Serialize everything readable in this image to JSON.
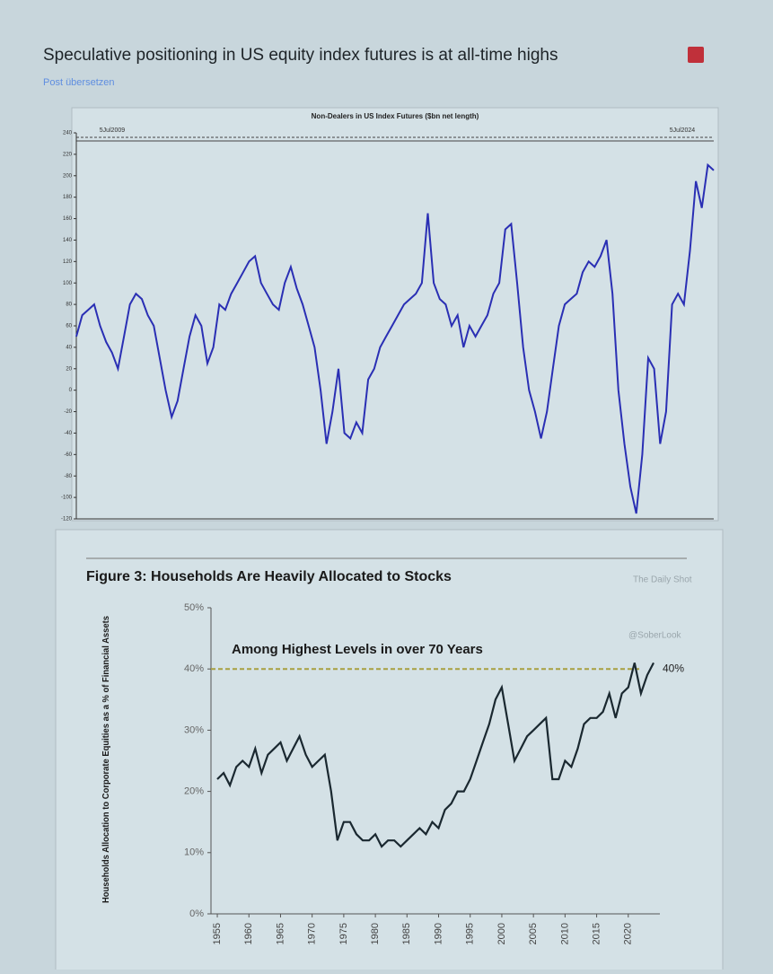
{
  "post": {
    "title": "Speculative positioning in US equity index futures is at all-time highs",
    "translate": "Post übersetzen"
  },
  "chart_data": [
    {
      "type": "line",
      "title": "Non-Dealers in US Index Futures ($bn net length)",
      "annotations": [
        "5Jul2009",
        "5Jul2024"
      ],
      "values": [
        50,
        70,
        75,
        80,
        60,
        45,
        35,
        20,
        50,
        80,
        90,
        85,
        70,
        60,
        30,
        0,
        -25,
        -10,
        20,
        50,
        70,
        60,
        25,
        40,
        80,
        75,
        90,
        100,
        110,
        120,
        125,
        100,
        90,
        80,
        75,
        100,
        115,
        95,
        80,
        60,
        40,
        0,
        -50,
        -20,
        20,
        -40,
        -45,
        -30,
        -40,
        10,
        20,
        40,
        50,
        60,
        70,
        80,
        85,
        90,
        100,
        165,
        100,
        85,
        80,
        60,
        70,
        40,
        60,
        50,
        60,
        70,
        90,
        100,
        150,
        155,
        100,
        40,
        0,
        -20,
        -45,
        -20,
        20,
        60,
        80,
        85,
        90,
        110,
        120,
        115,
        125,
        140,
        90,
        0,
        -50,
        -90,
        -115,
        -60,
        30,
        20,
        -50,
        -20,
        80,
        90,
        80,
        130,
        195,
        170,
        210,
        205
      ],
      "color": "#2a2fb4",
      "ylim": [
        -120,
        240
      ],
      "yticks": [
        -120,
        -100,
        -80,
        -60,
        -40,
        -20,
        0,
        20,
        40,
        60,
        80,
        100,
        120,
        140,
        160,
        180,
        200,
        220,
        240
      ]
    },
    {
      "type": "line",
      "title": "Figure 3: Households Are Heavily Allocated to Stocks",
      "y_label": "Households Allocation to Corporate Equities as a % of Financial Assets",
      "annotation": "Among Highest Levels in over 70 Years",
      "reference": {
        "value": 40,
        "label": "40%"
      },
      "reference_color": "#a8a040",
      "watermarks": [
        "The Daily Shot",
        "@SoberLook"
      ],
      "x": [
        1955,
        1956,
        1957,
        1958,
        1959,
        1960,
        1961,
        1962,
        1963,
        1964,
        1965,
        1966,
        1967,
        1968,
        1969,
        1970,
        1971,
        1972,
        1973,
        1974,
        1975,
        1976,
        1977,
        1978,
        1979,
        1980,
        1981,
        1982,
        1983,
        1984,
        1985,
        1986,
        1987,
        1988,
        1989,
        1990,
        1991,
        1992,
        1993,
        1994,
        1995,
        1996,
        1997,
        1998,
        1999,
        2000,
        2001,
        2002,
        2003,
        2004,
        2005,
        2006,
        2007,
        2008,
        2009,
        2010,
        2011,
        2012,
        2013,
        2014,
        2015,
        2016,
        2017,
        2018,
        2019,
        2020,
        2021,
        2022,
        2023,
        2024
      ],
      "values": [
        22,
        23,
        21,
        24,
        25,
        24,
        27,
        23,
        26,
        27,
        28,
        25,
        27,
        29,
        26,
        24,
        25,
        26,
        20,
        12,
        15,
        15,
        13,
        12,
        12,
        13,
        11,
        12,
        12,
        11,
        12,
        13,
        14,
        13,
        15,
        14,
        17,
        18,
        20,
        20,
        22,
        25,
        28,
        31,
        35,
        37,
        31,
        25,
        27,
        29,
        30,
        31,
        32,
        22,
        22,
        25,
        24,
        27,
        31,
        32,
        32,
        33,
        36,
        32,
        36,
        37,
        41,
        36,
        39,
        41
      ],
      "color": "#1a2830",
      "xlim": [
        1954,
        2025
      ],
      "ylim": [
        0,
        50
      ],
      "yticks": [
        {
          "value": 0,
          "label": "0%"
        },
        {
          "value": 10,
          "label": "10%"
        },
        {
          "value": 20,
          "label": "20%"
        },
        {
          "value": 30,
          "label": "30%"
        },
        {
          "value": 40,
          "label": "40%"
        },
        {
          "value": 50,
          "label": "50%"
        }
      ],
      "xticks": [
        1955,
        1960,
        1965,
        1970,
        1975,
        1980,
        1985,
        1990,
        1995,
        2000,
        2005,
        2010,
        2015,
        2020
      ]
    }
  ]
}
